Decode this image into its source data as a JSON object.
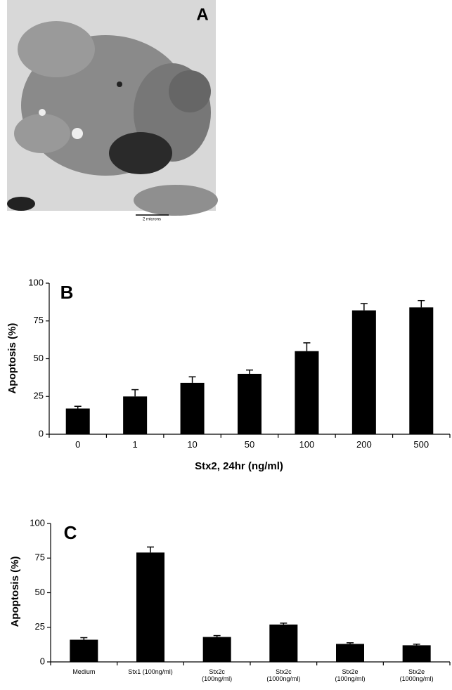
{
  "panel_a": {
    "label": "A",
    "scale_bar": "2 microns"
  },
  "chart_data": [
    {
      "type": "bar",
      "panel": "B",
      "ylabel": "Apoptosis (%)",
      "xlabel": "Stx2, 24hr (ng/ml)",
      "categories": [
        "0",
        "1",
        "10",
        "50",
        "100",
        "200",
        "500"
      ],
      "values": [
        17,
        25,
        34,
        40,
        55,
        82,
        84
      ],
      "errors": [
        1.5,
        4.5,
        4,
        2.5,
        5.5,
        4.5,
        4.5
      ],
      "color": "#000000",
      "ylim": [
        0,
        100
      ],
      "yticks": [
        0,
        25,
        50,
        75,
        100
      ]
    },
    {
      "type": "bar",
      "panel": "C",
      "ylabel": "Apoptosis (%)",
      "categories": [
        "Medium",
        "Stx1 (100ng/ml)",
        "Stx2c\n(100ng/ml)",
        "Stx2c\n(1000ng/ml)",
        "Stx2e\n(100ng/ml)",
        "Stx2e\n(1000ng/ml)"
      ],
      "values": [
        16,
        79,
        18,
        27,
        13,
        12
      ],
      "errors": [
        1.5,
        4,
        1,
        1,
        0.8,
        0.8
      ],
      "color": "#000000",
      "ylim": [
        0,
        100
      ],
      "yticks": [
        0,
        25,
        50,
        75,
        100
      ]
    }
  ]
}
